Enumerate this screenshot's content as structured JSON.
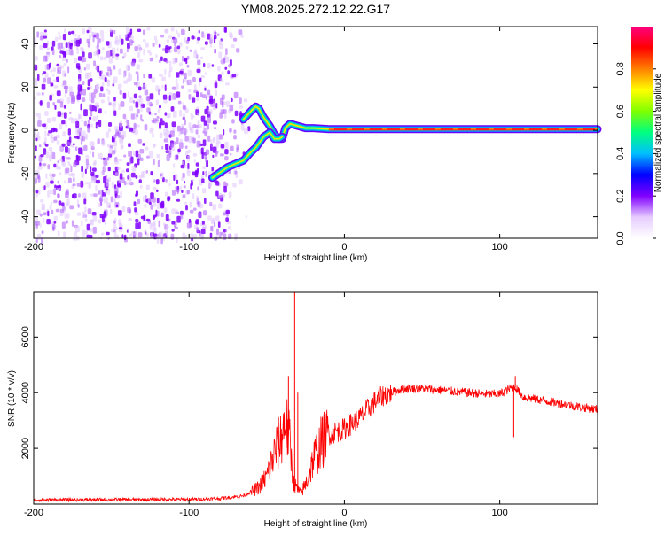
{
  "page_title": "YM08.2025.272.12.22.G17",
  "chart_data": [
    {
      "type": "heatmap",
      "xlabel": "Height of straight line (km)",
      "ylabel": "Frequency (Hz)",
      "xlim": [
        -200,
        163
      ],
      "ylim": [
        -50,
        48
      ],
      "xticks": [
        -200,
        -100,
        0,
        100
      ],
      "yticks": [
        -40,
        -20,
        0,
        20,
        40
      ],
      "colorbar": {
        "label": "Normalized spectral amplitude",
        "range": [
          0,
          1
        ],
        "ticks": [
          "0.0",
          "0.2",
          "0.4",
          "0.6",
          "0.8"
        ],
        "colors": [
          "#ffffff",
          "#e6ccff",
          "#8000ff",
          "#0000ff",
          "#00bfff",
          "#00ff80",
          "#80ff00",
          "#ffff00",
          "#ff8000",
          "#ff0000",
          "#ff0080"
        ]
      },
      "signal_track": {
        "x": [
          -85,
          -75,
          -65,
          -60,
          -57,
          -55,
          -52,
          -48,
          -45,
          -42,
          -40,
          -38,
          -35,
          -30,
          -25,
          -20,
          -10,
          0,
          10,
          50,
          100,
          163
        ],
        "upper_freq": [
          null,
          null,
          5,
          9,
          11,
          10,
          6,
          2,
          -2,
          -4,
          -4,
          1,
          3,
          2,
          1,
          1,
          0.5,
          0.5,
          0.5,
          0.5,
          0.5,
          0.5
        ],
        "lower_freq": [
          -22,
          -17,
          -14,
          -10,
          -8,
          -6,
          -3,
          -1,
          -4,
          -4,
          -3,
          null,
          null,
          null,
          null,
          null,
          null,
          null,
          null,
          null,
          null,
          null
        ]
      }
    },
    {
      "type": "line",
      "xlabel": "Height of straight line (km)",
      "ylabel": "SNR (10 * v/v)",
      "xlim": [
        -200,
        163
      ],
      "ylim": [
        0,
        7600
      ],
      "xticks": [
        -200,
        -100,
        0,
        100
      ],
      "yticks": [
        2000,
        4000,
        6000
      ],
      "series": [
        {
          "name": "SNR",
          "color": "#ff0000",
          "x": [
            -200,
            -150,
            -100,
            -80,
            -65,
            -55,
            -50,
            -45,
            -40,
            -38,
            -35,
            -33,
            -30,
            -28,
            -25,
            -22,
            -20,
            -15,
            -10,
            -5,
            0,
            5,
            10,
            15,
            20,
            25,
            30,
            35,
            40,
            50,
            60,
            70,
            80,
            90,
            100,
            105,
            108,
            110,
            115,
            120,
            130,
            140,
            150,
            163
          ],
          "y": [
            150,
            160,
            170,
            200,
            300,
            600,
            1000,
            1800,
            2500,
            3000,
            2200,
            800,
            500,
            400,
            700,
            1200,
            1600,
            2200,
            2500,
            2600,
            2700,
            2900,
            3100,
            3400,
            3700,
            3900,
            4000,
            4100,
            4150,
            4150,
            4100,
            4050,
            4000,
            3950,
            3950,
            4100,
            4200,
            4200,
            3850,
            3800,
            3700,
            3600,
            3500,
            3400
          ],
          "spikes": [
            {
              "x": -32,
              "y": 7600
            },
            {
              "x": -36,
              "y": 4600
            },
            {
              "x": -30,
              "y": 4000
            },
            {
              "x": 110,
              "y": 4600
            },
            {
              "x": 109,
              "y": 2400
            }
          ]
        }
      ]
    }
  ]
}
